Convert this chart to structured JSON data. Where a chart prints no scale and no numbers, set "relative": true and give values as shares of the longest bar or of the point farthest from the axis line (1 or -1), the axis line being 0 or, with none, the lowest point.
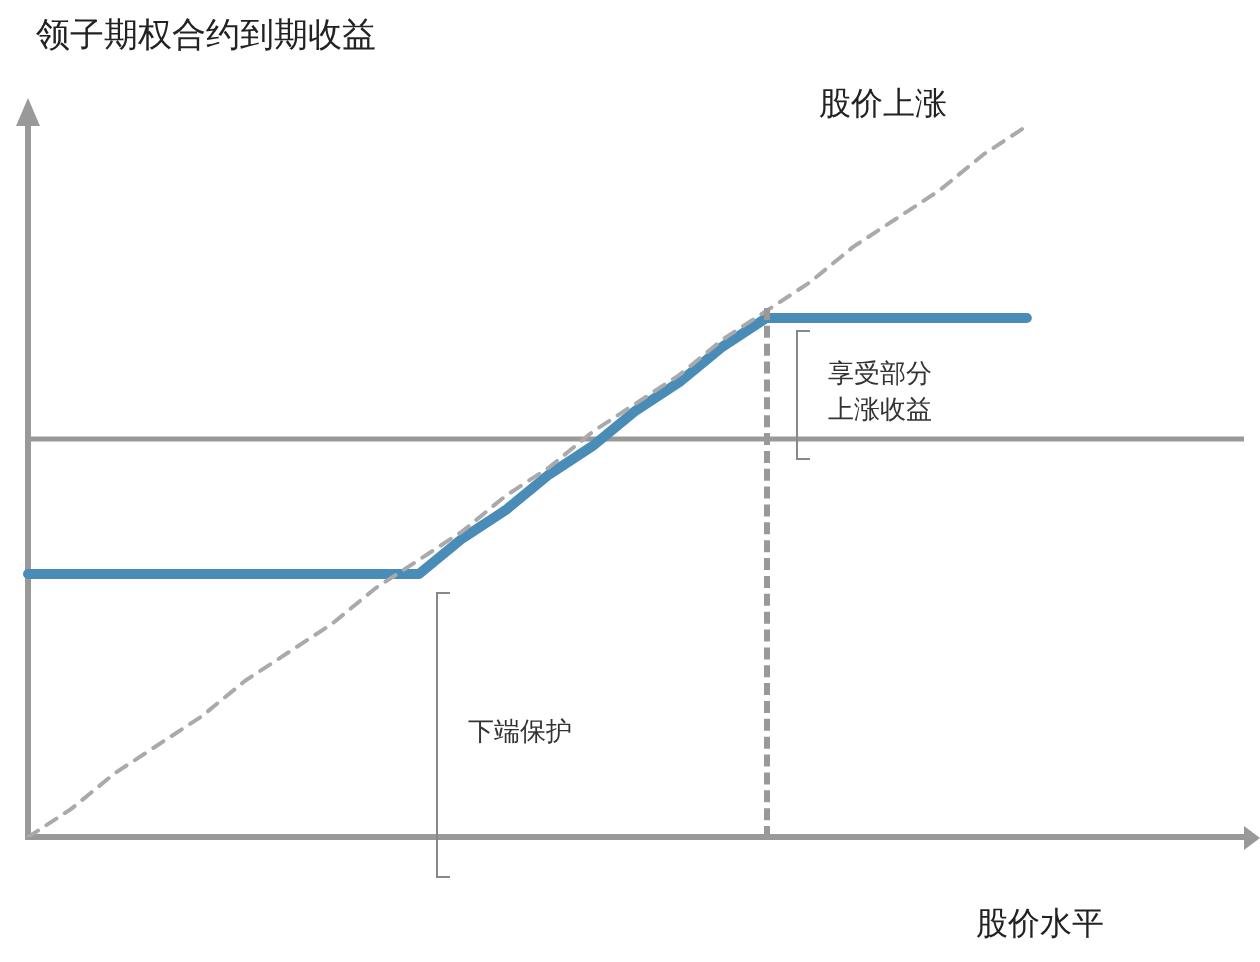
{
  "chart_data": {
    "type": "line",
    "title": "领子期权合约到期收益",
    "xlabel": "股价水平",
    "relative": true,
    "grid": false,
    "legend": false,
    "categories": [
      null,
      null,
      null,
      null,
      null,
      null,
      null,
      null,
      null,
      null,
      null,
      null,
      null,
      null,
      null,
      null,
      null,
      null,
      null,
      null,
      null,
      null,
      null,
      null,
      null,
      null,
      null,
      null,
      null
    ],
    "series": [
      {
        "name": "股价上涨",
        "color": "#aaaaaa",
        "line_style": "dashed",
        "values": [
          0,
          0.04,
          0.09,
          0.13,
          0.17,
          0.22,
          0.26,
          0.3,
          0.35,
          0.39,
          0.43,
          0.48,
          0.52,
          0.57,
          0.61,
          0.65,
          0.7,
          0.74,
          0.78,
          0.83,
          0.87,
          0.91,
          0.96,
          1,
          null,
          null,
          null,
          null,
          null
        ]
      },
      {
        "color": "#4a8cb8",
        "line_style": "solid",
        "values": [
          0.37,
          0.37,
          0.37,
          0.37,
          0.37,
          0.37,
          0.37,
          0.37,
          0.37,
          0.37,
          0.42,
          0.46,
          0.51,
          0.55,
          0.6,
          0.64,
          0.69,
          0.73,
          0.73,
          0.73,
          0.73,
          0.73,
          0.73,
          0.73,
          null,
          null,
          null,
          null,
          null
        ]
      }
    ],
    "ref_lines": [
      {
        "axis": "y",
        "value": 0.56,
        "color": "#999999",
        "line_style": "solid"
      }
    ],
    "annotations": [
      "享受部分上涨收益",
      "下端保护"
    ]
  }
}
